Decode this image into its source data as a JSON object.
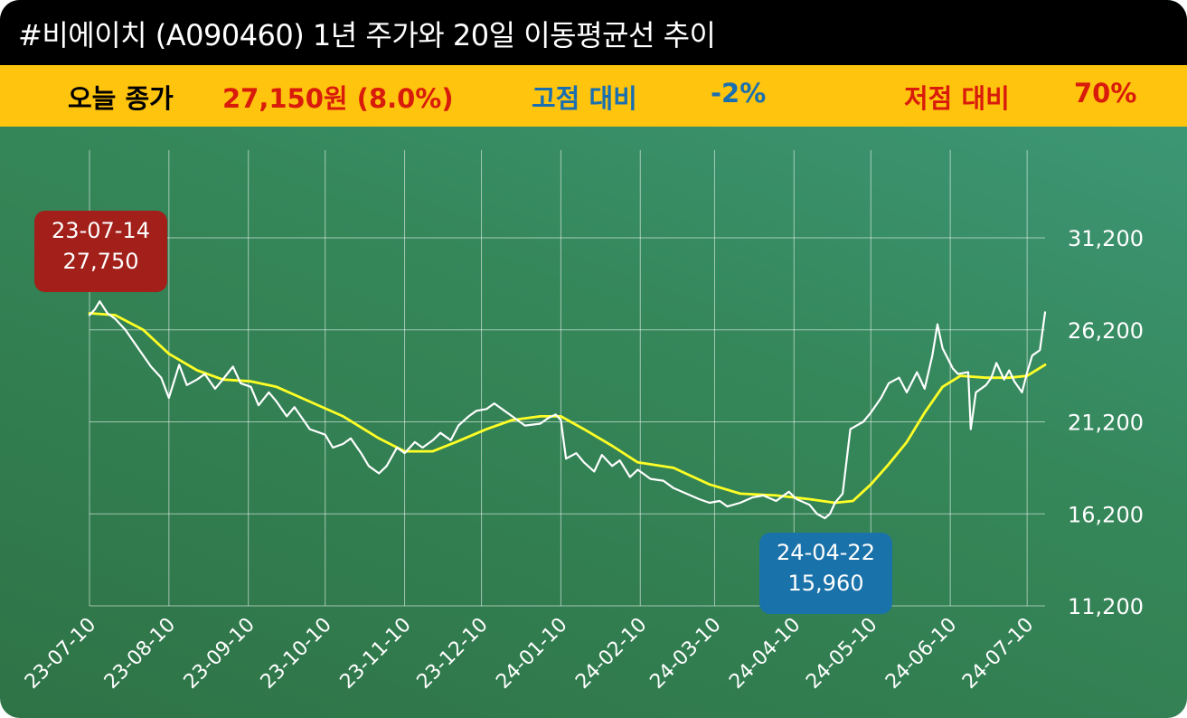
{
  "title": "#비에이치 (A090460) 1년 주가와 20일 이동평균선 추이",
  "info": {
    "close_label": "오늘 종가",
    "close_value": "27,150원 (8.0%)",
    "high_label": "고점 대비",
    "high_value": "-2%",
    "low_label": "저점 대비",
    "low_value": "70%"
  },
  "callouts": {
    "high_date": "23-07-14",
    "high_price": "27,750",
    "low_date": "24-04-22",
    "low_price": "15,960"
  },
  "colors": {
    "price_line": "#ffffff",
    "ma_line": "#ffff26",
    "title_bg": "#000000",
    "info_bg": "#ffc40d",
    "close_text": "#d81b0b",
    "high_text": "#1a6fb0",
    "low_text": "#d81b0b",
    "high_callout": "#a21f1a",
    "low_callout": "#1a72aa"
  },
  "chart_data": {
    "type": "line",
    "title": "",
    "xlabel": "",
    "ylabel": "",
    "ylim": [
      11200,
      31200
    ],
    "yticks": [
      11200,
      16200,
      21200,
      26200,
      31200
    ],
    "ytick_labels": [
      "11,200",
      "16,200",
      "21,200",
      "26,200",
      "31,200"
    ],
    "xtick_labels": [
      "23-07-10",
      "23-08-10",
      "23-09-10",
      "23-10-10",
      "23-11-10",
      "23-12-10",
      "24-01-10",
      "24-02-10",
      "24-03-10",
      "24-04-10",
      "24-05-10",
      "24-06-10",
      "24-07-10"
    ],
    "x_start": "2023-07-10",
    "x_end": "2024-07-17",
    "grid": true,
    "series": [
      {
        "role": "price",
        "points": [
          [
            "2023-07-10",
            27000
          ],
          [
            "2023-07-12",
            27300
          ],
          [
            "2023-07-14",
            27750
          ],
          [
            "2023-07-17",
            27100
          ],
          [
            "2023-07-20",
            26800
          ],
          [
            "2023-07-24",
            26200
          ],
          [
            "2023-07-27",
            25600
          ],
          [
            "2023-07-31",
            24800
          ],
          [
            "2023-08-03",
            24200
          ],
          [
            "2023-08-07",
            23600
          ],
          [
            "2023-08-10",
            22500
          ],
          [
            "2023-08-14",
            24300
          ],
          [
            "2023-08-17",
            23200
          ],
          [
            "2023-08-21",
            23500
          ],
          [
            "2023-08-24",
            23800
          ],
          [
            "2023-08-28",
            23000
          ],
          [
            "2023-08-31",
            23500
          ],
          [
            "2023-09-04",
            24200
          ],
          [
            "2023-09-07",
            23300
          ],
          [
            "2023-09-11",
            23100
          ],
          [
            "2023-09-14",
            22100
          ],
          [
            "2023-09-18",
            22800
          ],
          [
            "2023-09-21",
            22300
          ],
          [
            "2023-09-25",
            21500
          ],
          [
            "2023-09-28",
            22000
          ],
          [
            "2023-10-04",
            20800
          ],
          [
            "2023-10-10",
            20500
          ],
          [
            "2023-10-13",
            19800
          ],
          [
            "2023-10-17",
            20000
          ],
          [
            "2023-10-20",
            20300
          ],
          [
            "2023-10-24",
            19500
          ],
          [
            "2023-10-27",
            18800
          ],
          [
            "2023-10-31",
            18400
          ],
          [
            "2023-11-03",
            18800
          ],
          [
            "2023-11-07",
            19800
          ],
          [
            "2023-11-10",
            19500
          ],
          [
            "2023-11-14",
            20100
          ],
          [
            "2023-11-17",
            19800
          ],
          [
            "2023-11-21",
            20200
          ],
          [
            "2023-11-24",
            20600
          ],
          [
            "2023-11-28",
            20200
          ],
          [
            "2023-12-01",
            21000
          ],
          [
            "2023-12-05",
            21500
          ],
          [
            "2023-12-08",
            21800
          ],
          [
            "2023-12-12",
            21900
          ],
          [
            "2023-12-15",
            22200
          ],
          [
            "2023-12-19",
            21800
          ],
          [
            "2023-12-22",
            21500
          ],
          [
            "2023-12-27",
            21000
          ],
          [
            "2024-01-02",
            21100
          ],
          [
            "2024-01-05",
            21400
          ],
          [
            "2024-01-08",
            21600
          ],
          [
            "2024-01-10",
            21300
          ],
          [
            "2024-01-12",
            19200
          ],
          [
            "2024-01-16",
            19500
          ],
          [
            "2024-01-19",
            19000
          ],
          [
            "2024-01-23",
            18500
          ],
          [
            "2024-01-26",
            19400
          ],
          [
            "2024-01-30",
            18800
          ],
          [
            "2024-02-02",
            19100
          ],
          [
            "2024-02-06",
            18200
          ],
          [
            "2024-02-09",
            18600
          ],
          [
            "2024-02-14",
            18100
          ],
          [
            "2024-02-19",
            18000
          ],
          [
            "2024-02-23",
            17600
          ],
          [
            "2024-02-28",
            17300
          ],
          [
            "2024-03-04",
            17000
          ],
          [
            "2024-03-08",
            16800
          ],
          [
            "2024-03-12",
            16900
          ],
          [
            "2024-03-15",
            16600
          ],
          [
            "2024-03-20",
            16800
          ],
          [
            "2024-03-25",
            17100
          ],
          [
            "2024-03-29",
            17200
          ],
          [
            "2024-04-03",
            16900
          ],
          [
            "2024-04-08",
            17400
          ],
          [
            "2024-04-11",
            17000
          ],
          [
            "2024-04-16",
            16700
          ],
          [
            "2024-04-19",
            16200
          ],
          [
            "2024-04-22",
            15960
          ],
          [
            "2024-04-24",
            16200
          ],
          [
            "2024-04-26",
            16800
          ],
          [
            "2024-04-29",
            17300
          ],
          [
            "2024-05-02",
            20800
          ],
          [
            "2024-05-07",
            21200
          ],
          [
            "2024-05-10",
            21700
          ],
          [
            "2024-05-14",
            22500
          ],
          [
            "2024-05-17",
            23300
          ],
          [
            "2024-05-21",
            23600
          ],
          [
            "2024-05-24",
            22800
          ],
          [
            "2024-05-28",
            23900
          ],
          [
            "2024-05-31",
            23000
          ],
          [
            "2024-06-03",
            24800
          ],
          [
            "2024-06-05",
            26500
          ],
          [
            "2024-06-07",
            25200
          ],
          [
            "2024-06-11",
            24100
          ],
          [
            "2024-06-13",
            23800
          ],
          [
            "2024-06-17",
            23900
          ],
          [
            "2024-06-18",
            20800
          ],
          [
            "2024-06-20",
            22800
          ],
          [
            "2024-06-24",
            23200
          ],
          [
            "2024-06-26",
            23600
          ],
          [
            "2024-06-28",
            24400
          ],
          [
            "2024-07-01",
            23500
          ],
          [
            "2024-07-03",
            24000
          ],
          [
            "2024-07-05",
            23400
          ],
          [
            "2024-07-08",
            22800
          ],
          [
            "2024-07-10",
            23900
          ],
          [
            "2024-07-12",
            24800
          ],
          [
            "2024-07-15",
            25100
          ],
          [
            "2024-07-17",
            27150
          ]
        ]
      },
      {
        "role": "ma20",
        "points": [
          [
            "2023-07-10",
            27100
          ],
          [
            "2023-07-20",
            27000
          ],
          [
            "2023-07-31",
            26200
          ],
          [
            "2023-08-10",
            24900
          ],
          [
            "2023-08-21",
            24000
          ],
          [
            "2023-08-31",
            23500
          ],
          [
            "2023-09-11",
            23400
          ],
          [
            "2023-09-21",
            23100
          ],
          [
            "2023-10-04",
            22300
          ],
          [
            "2023-10-17",
            21500
          ],
          [
            "2023-10-31",
            20300
          ],
          [
            "2023-11-10",
            19600
          ],
          [
            "2023-11-21",
            19600
          ],
          [
            "2023-11-30",
            20100
          ],
          [
            "2023-12-12",
            20800
          ],
          [
            "2023-12-22",
            21300
          ],
          [
            "2024-01-02",
            21500
          ],
          [
            "2024-01-10",
            21500
          ],
          [
            "2024-01-19",
            20800
          ],
          [
            "2024-01-30",
            19900
          ],
          [
            "2024-02-09",
            19000
          ],
          [
            "2024-02-23",
            18700
          ],
          [
            "2024-03-08",
            17800
          ],
          [
            "2024-03-20",
            17300
          ],
          [
            "2024-04-03",
            17200
          ],
          [
            "2024-04-16",
            17000
          ],
          [
            "2024-04-26",
            16800
          ],
          [
            "2024-05-03",
            16900
          ],
          [
            "2024-05-10",
            17800
          ],
          [
            "2024-05-17",
            18900
          ],
          [
            "2024-05-24",
            20100
          ],
          [
            "2024-05-31",
            21700
          ],
          [
            "2024-06-07",
            23100
          ],
          [
            "2024-06-14",
            23700
          ],
          [
            "2024-06-24",
            23600
          ],
          [
            "2024-07-03",
            23600
          ],
          [
            "2024-07-10",
            23700
          ],
          [
            "2024-07-17",
            24300
          ]
        ]
      }
    ]
  }
}
